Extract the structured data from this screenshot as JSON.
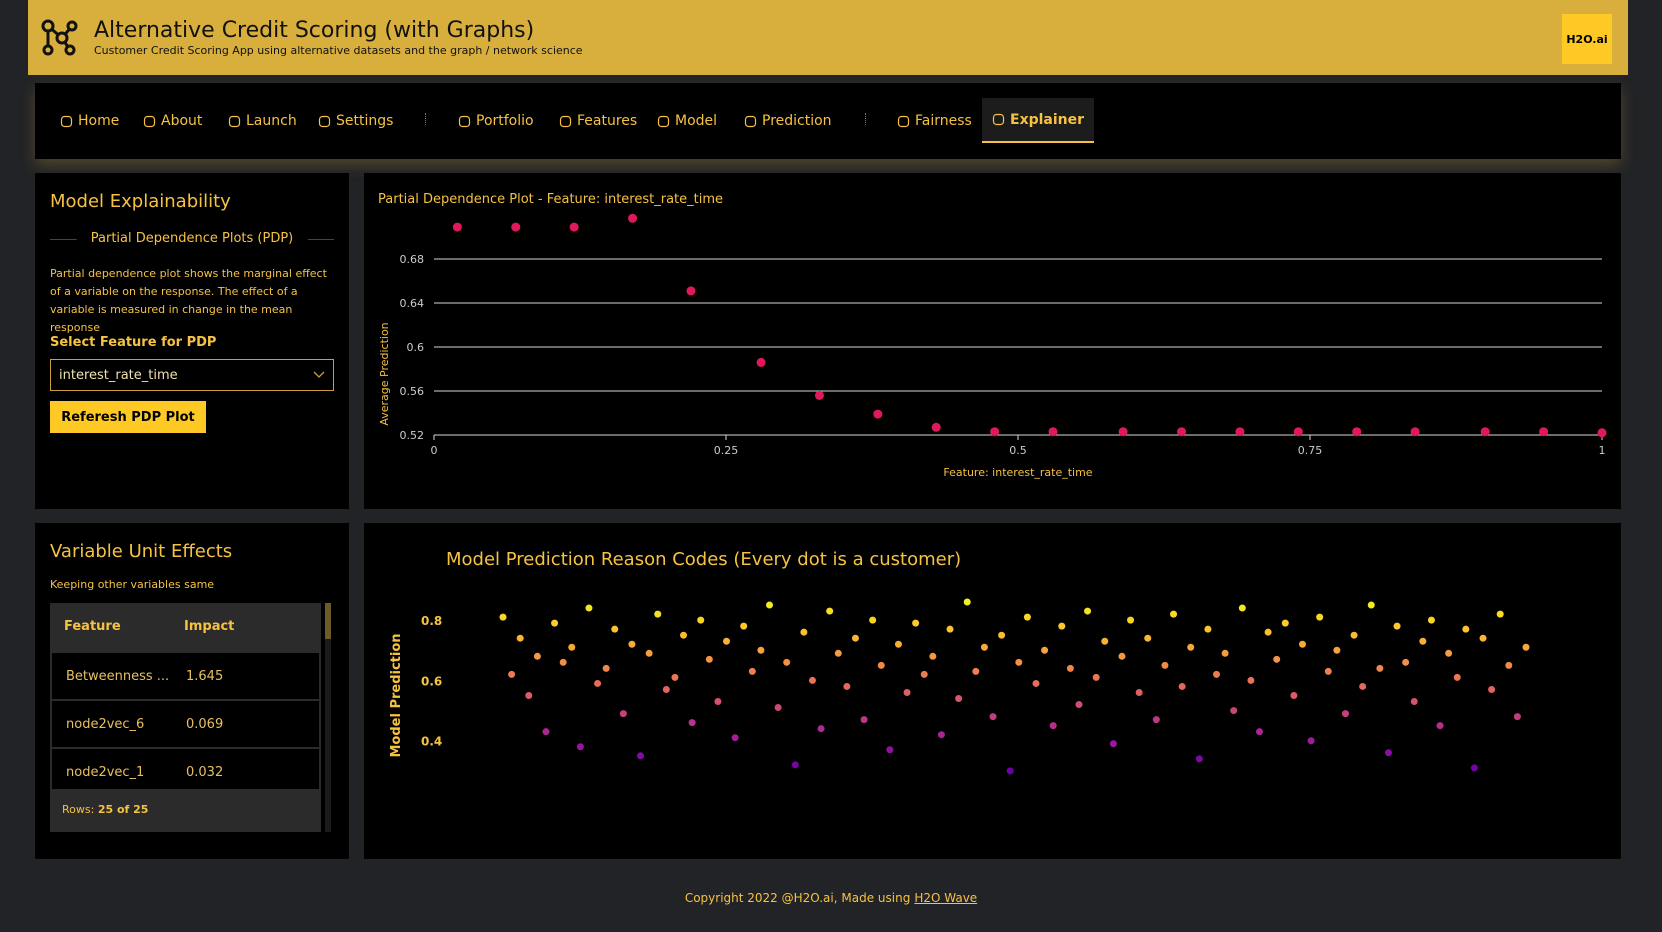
{
  "header": {
    "title": "Alternative Credit Scoring (with Graphs)",
    "subtitle": "Customer Credit Scoring App using alternative datasets and the graph / network science",
    "logo": "H2O.ai"
  },
  "nav": {
    "items": [
      "Home",
      "About",
      "Launch",
      "Settings",
      "Portfolio",
      "Features",
      "Model",
      "Prediction",
      "Fairness",
      "Explainer"
    ],
    "active_index": 9
  },
  "explainability": {
    "title": "Model Explainability",
    "section": "Partial Dependence Plots (PDP)",
    "description": "Partial dependence plot shows the marginal effect of a variable on the response. The effect of a variable is measured in change in the mean response",
    "select_label": "Select Feature for PDP",
    "select_value": "interest_rate_time",
    "button": "Referesh PDP Plot"
  },
  "pdp_chart": {
    "type": "scatter",
    "title": "Partial Dependence Plot - Feature: interest_rate_time",
    "x_label": "Feature: interest_rate_time",
    "y_label": "Average Prediction",
    "x": [
      0.02,
      0.07,
      0.12,
      0.17,
      0.22,
      0.28,
      0.33,
      0.38,
      0.43,
      0.48,
      0.53,
      0.59,
      0.64,
      0.69,
      0.74,
      0.79,
      0.84,
      0.9,
      0.95,
      1
    ],
    "values": [
      0.709,
      0.709,
      0.709,
      0.717,
      0.651,
      0.586,
      0.556,
      0.539,
      0.527,
      0.523,
      0.523,
      0.523,
      0.523,
      0.523,
      0.523,
      0.523,
      0.523,
      0.523,
      0.523,
      0.522
    ],
    "color": "#e0195f",
    "xlim": [
      0,
      1
    ],
    "ylim": [
      0.52,
      0.73
    ],
    "xticks": [
      0,
      0.25,
      0.5,
      0.75,
      1
    ],
    "yticks": [
      0.52,
      0.56,
      0.6,
      0.64,
      0.68
    ],
    "grid": true
  },
  "effects": {
    "title": "Variable Unit Effects",
    "subtitle": "Keeping other variables same",
    "table": {
      "columns": [
        "Feature",
        "Impact"
      ],
      "rows": [
        [
          "Betweenness ...",
          1.645
        ],
        [
          "node2vec_6",
          0.069
        ],
        [
          "node2vec_1",
          0.032
        ]
      ]
    },
    "footer_label": "Rows:",
    "footer_value": "25 of 25"
  },
  "reason_chart": {
    "type": "scatter",
    "title": "Model Prediction Reason Codes (Every dot is a customer)",
    "y_label": "Model Prediction",
    "values": [
      0.81,
      0.62,
      0.74,
      0.55,
      0.68,
      0.43,
      0.79,
      0.66,
      0.71,
      0.38,
      0.84,
      0.59,
      0.64,
      0.77,
      0.49,
      0.72,
      0.35,
      0.69,
      0.82,
      0.57,
      0.61,
      0.75,
      0.46,
      0.8,
      0.67,
      0.53,
      0.73,
      0.41,
      0.78,
      0.63,
      0.7,
      0.85,
      0.51,
      0.66,
      0.32,
      0.76,
      0.6,
      0.44,
      0.83,
      0.69,
      0.58,
      0.74,
      0.47,
      0.8,
      0.65,
      0.37,
      0.72,
      0.56,
      0.79,
      0.62,
      0.68,
      0.42,
      0.77,
      0.54,
      0.86,
      0.63,
      0.71,
      0.48,
      0.75,
      0.3,
      0.66,
      0.81,
      0.59,
      0.7,
      0.45,
      0.78,
      0.64,
      0.52,
      0.83,
      0.61,
      0.73,
      0.39,
      0.68,
      0.8,
      0.56,
      0.74,
      0.47,
      0.65,
      0.82,
      0.58,
      0.71,
      0.34,
      0.77,
      0.62,
      0.69,
      0.5,
      0.84,
      0.6,
      0.43,
      0.76,
      0.67,
      0.79,
      0.55,
      0.72,
      0.4,
      0.81,
      0.63,
      0.7,
      0.49,
      0.75,
      0.58,
      0.85,
      0.64,
      0.36,
      0.78,
      0.66,
      0.53,
      0.73,
      0.8,
      0.45,
      0.69,
      0.61,
      0.77,
      0.31,
      0.74,
      0.57,
      0.82,
      0.65,
      0.48,
      0.71
    ],
    "ylim": [
      0.22,
      0.88
    ],
    "yticks": [
      0.4,
      0.6,
      0.8
    ],
    "colorscale": [
      "#3a049a",
      "#7e03a8",
      "#b12a90",
      "#dc5b68",
      "#f48f44",
      "#fcc32a",
      "#f0f921"
    ]
  },
  "footer": {
    "text": "Copyright 2022 @H2O.ai, Made using",
    "link": "H2O Wave"
  }
}
